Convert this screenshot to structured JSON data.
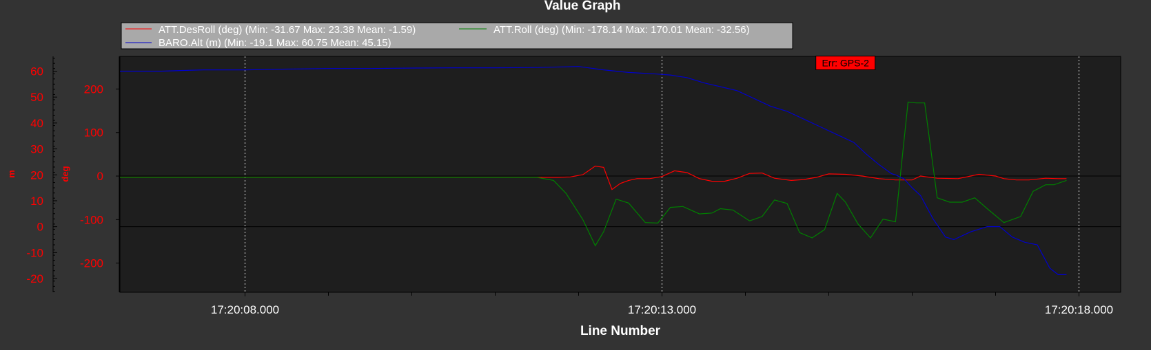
{
  "chart_data": {
    "type": "line",
    "title": "Value Graph",
    "xlabel": "Line Number",
    "x_unit": "seconds after 17:20:00",
    "xlim": [
      6.5,
      18.5
    ],
    "x_ticks": [
      {
        "value": 8,
        "label": "17:20:08.000"
      },
      {
        "value": 13,
        "label": "17:20:13.000"
      },
      {
        "value": 18,
        "label": "17:20:18.000"
      }
    ],
    "x_minor_ticks": [
      9,
      10,
      11,
      12,
      14,
      15,
      16,
      17
    ],
    "y_axes": [
      {
        "id": "deg",
        "label": "deg",
        "color": "#ff0000",
        "ticks": [
          200,
          100,
          0,
          -100,
          -200
        ],
        "ylim": [
          -267,
          275
        ]
      },
      {
        "id": "m",
        "label": "m",
        "color": "#ff0000",
        "ticks": [
          60,
          50,
          40,
          30,
          20,
          10,
          0,
          -10,
          -20
        ],
        "ylim": [
          -25.3,
          65.7
        ]
      }
    ],
    "grid": true,
    "legend_position": "top",
    "legend": [
      {
        "label": "ATT.DesRoll (deg) (Min: -31.67 Max: 23.38 Mean: -1.59)",
        "color": "#ff0000"
      },
      {
        "label": "ATT.Roll (deg) (Min: -178.14 Max: 170.01 Mean: -32.56)",
        "color": "#008000"
      },
      {
        "label": "BARO.Alt (m) (Min: -19.1 Max: 60.75 Mean: 45.15)",
        "color": "#0000cc"
      }
    ],
    "annotations": [
      {
        "text": "Err: GPS-2",
        "x": 15.2,
        "y_deg": 260,
        "color": "#ff0000"
      }
    ],
    "series": [
      {
        "name": "ATT.DesRoll",
        "unit": "deg",
        "axis": "deg",
        "color": "#ff0000",
        "x": [
          6.5,
          11.5,
          11.75,
          11.9,
          12.05,
          12.2,
          12.3,
          12.4,
          12.5,
          12.6,
          12.7,
          12.85,
          13.0,
          13.15,
          13.3,
          13.45,
          13.6,
          13.75,
          13.9,
          14.05,
          14.2,
          14.35,
          14.55,
          14.7,
          14.85,
          15.0,
          15.2,
          15.4,
          15.6,
          15.8,
          16.0,
          16.1,
          16.3,
          16.55,
          16.8,
          17.0,
          17.1,
          17.25,
          17.4,
          17.6,
          17.75,
          17.85
        ],
        "y": [
          -3,
          -3,
          -3,
          -2,
          3,
          23,
          20,
          -31,
          -17,
          -10,
          -6,
          -6,
          -1,
          12,
          8,
          -6,
          -12,
          -12,
          -5,
          6,
          7,
          -5,
          -10,
          -8,
          -3,
          5,
          4,
          0,
          -6,
          -9,
          -9,
          0,
          -5,
          -6,
          4,
          0,
          -6,
          -9,
          -9,
          -5,
          -6,
          -6
        ]
      },
      {
        "name": "ATT.Roll",
        "unit": "deg",
        "axis": "deg",
        "color": "#008000",
        "x": [
          6.5,
          11.5,
          11.7,
          11.85,
          12.05,
          12.2,
          12.3,
          12.45,
          12.6,
          12.8,
          12.95,
          13.1,
          13.25,
          13.45,
          13.6,
          13.7,
          13.85,
          14.05,
          14.2,
          14.35,
          14.5,
          14.65,
          14.8,
          14.95,
          15.1,
          15.2,
          15.35,
          15.5,
          15.65,
          15.8,
          15.95,
          16.05,
          16.15,
          16.3,
          16.45,
          16.6,
          16.75,
          16.9,
          17.1,
          17.3,
          17.45,
          17.6,
          17.7,
          17.85
        ],
        "y": [
          -3,
          -3,
          -10,
          -40,
          -100,
          -160,
          -128,
          -53,
          -62,
          -107,
          -108,
          -72,
          -70,
          -87,
          -85,
          -75,
          -78,
          -103,
          -93,
          -55,
          -63,
          -130,
          -142,
          -123,
          -40,
          -60,
          -110,
          -142,
          -99,
          -105,
          170,
          168,
          168,
          -50,
          -60,
          -60,
          -50,
          -75,
          -107,
          -93,
          -35,
          -20,
          -20,
          -10
        ]
      },
      {
        "name": "BARO.Alt",
        "unit": "m",
        "axis": "m",
        "color": "#0000cc",
        "x": [
          6.5,
          7.0,
          7.5,
          8.0,
          8.5,
          9.0,
          9.5,
          10.0,
          10.5,
          11.0,
          11.5,
          12.0,
          12.3,
          12.6,
          12.9,
          13.1,
          13.3,
          13.5,
          13.7,
          13.9,
          14.1,
          14.3,
          14.5,
          14.7,
          14.9,
          15.1,
          15.3,
          15.45,
          15.6,
          15.75,
          15.8,
          15.9,
          16.0,
          16.1,
          16.25,
          16.4,
          16.5,
          16.7,
          16.9,
          17.05,
          17.2,
          17.35,
          17.5,
          17.65,
          17.75,
          17.85
        ],
        "y": [
          60,
          60,
          60.5,
          60.5,
          60.8,
          61,
          61,
          61.2,
          61.3,
          61.3,
          61.4,
          61.8,
          60.5,
          59.5,
          59,
          58.5,
          57.5,
          55.5,
          54,
          52.5,
          49.5,
          46.5,
          44.5,
          41.5,
          38.5,
          35.5,
          32.5,
          28,
          24,
          20.5,
          20,
          18.5,
          15,
          12,
          3,
          -4,
          -5,
          -2,
          0,
          0,
          -4,
          -6,
          -7,
          -16,
          -18.5,
          -18.5
        ]
      }
    ]
  }
}
